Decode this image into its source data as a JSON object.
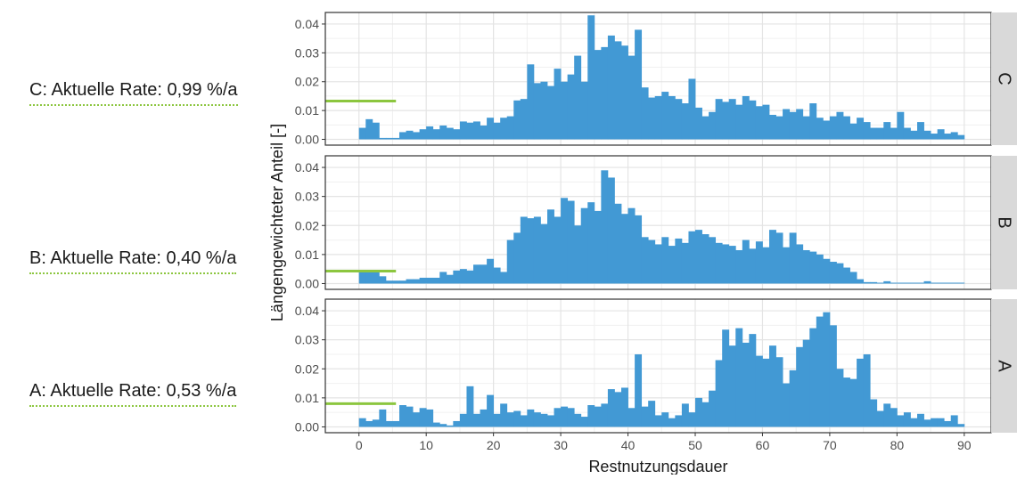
{
  "side_labels": [
    {
      "panel": "C",
      "prefix": "C:",
      "word1": "Aktuelle",
      "word2": "Rate:",
      "value": "0,99 %/a"
    },
    {
      "panel": "B",
      "prefix": "B:",
      "word1": "Aktuelle",
      "word2": "Rate:",
      "value": "0,40 %/a"
    },
    {
      "panel": "A",
      "prefix": "A:",
      "word1": "Aktuelle",
      "word2": "Rate:",
      "value": "0,53 %/a"
    }
  ],
  "chart_data": {
    "type": "bar",
    "xlabel": "Restnutzungsdauer",
    "ylabel": "Längengewichteter Anteil [-]",
    "xlim": [
      -5,
      94
    ],
    "ylim": [
      -0.002,
      0.044
    ],
    "x_ticks": [
      0,
      10,
      20,
      30,
      40,
      50,
      60,
      70,
      80,
      90
    ],
    "y_ticks": [
      0.0,
      0.01,
      0.02,
      0.03,
      0.04
    ],
    "y_tick_labels": [
      "0.00",
      "0.01",
      "0.02",
      "0.03",
      "0.04"
    ],
    "bar_color": "#4299d4",
    "marker_color": "#8cc63f",
    "grid": true,
    "facet_strip_color": "#d9d9d9",
    "panels": [
      {
        "name": "C",
        "marker_value": 0.0133,
        "marker_range": [
          -5,
          5.5
        ],
        "values": [
          0.004,
          0.007,
          0.0058,
          0.0005,
          0.0005,
          0.0005,
          0.0025,
          0.003,
          0.0025,
          0.0035,
          0.0045,
          0.0035,
          0.0048,
          0.004,
          0.0035,
          0.0062,
          0.0058,
          0.0062,
          0.0048,
          0.0075,
          0.0058,
          0.0075,
          0.008,
          0.0135,
          0.014,
          0.026,
          0.0195,
          0.02,
          0.0185,
          0.0245,
          0.02,
          0.0225,
          0.029,
          0.02,
          0.043,
          0.031,
          0.032,
          0.036,
          0.034,
          0.0325,
          0.029,
          0.038,
          0.018,
          0.0145,
          0.015,
          0.0165,
          0.015,
          0.014,
          0.0125,
          0.021,
          0.011,
          0.008,
          0.0095,
          0.014,
          0.013,
          0.014,
          0.012,
          0.015,
          0.0135,
          0.0115,
          0.012,
          0.0085,
          0.008,
          0.0105,
          0.0095,
          0.0105,
          0.008,
          0.0125,
          0.0075,
          0.0065,
          0.008,
          0.0095,
          0.008,
          0.0055,
          0.0075,
          0.006,
          0.004,
          0.004,
          0.006,
          0.004,
          0.0095,
          0.004,
          0.003,
          0.006,
          0.003,
          0.002,
          0.0035,
          0.002,
          0.0025,
          0.0015
        ]
      },
      {
        "name": "B",
        "marker_value": 0.0043,
        "marker_range": [
          -5,
          5.5
        ],
        "values": [
          0.004,
          0.004,
          0.0045,
          0.0025,
          0.001,
          0.001,
          0.001,
          0.0015,
          0.0015,
          0.002,
          0.002,
          0.002,
          0.004,
          0.003,
          0.0045,
          0.005,
          0.0045,
          0.0065,
          0.0065,
          0.0085,
          0.0055,
          0.004,
          0.015,
          0.0175,
          0.023,
          0.0225,
          0.023,
          0.0205,
          0.0255,
          0.023,
          0.0295,
          0.0285,
          0.02,
          0.026,
          0.028,
          0.025,
          0.039,
          0.0365,
          0.0275,
          0.024,
          0.026,
          0.0235,
          0.016,
          0.015,
          0.0135,
          0.016,
          0.013,
          0.0155,
          0.014,
          0.018,
          0.0185,
          0.017,
          0.016,
          0.014,
          0.0135,
          0.013,
          0.0115,
          0.015,
          0.012,
          0.0145,
          0.0125,
          0.0185,
          0.0175,
          0.0125,
          0.0175,
          0.0135,
          0.0115,
          0.011,
          0.01,
          0.0085,
          0.0075,
          0.007,
          0.0055,
          0.004,
          0.0015,
          0.0005,
          0.0005,
          0.0003,
          0.0008,
          0.0003,
          0.0003,
          0.0003,
          0.0003,
          0.0003,
          0.0008,
          0.0003,
          0.0003,
          0.0003,
          0.0003,
          0.0003
        ]
      },
      {
        "name": "A",
        "marker_value": 0.008,
        "marker_range": [
          -5,
          5.5
        ],
        "values": [
          0.003,
          0.002,
          0.0025,
          0.006,
          0.002,
          0.002,
          0.0075,
          0.007,
          0.005,
          0.0065,
          0.006,
          0.0015,
          0.001,
          0.0005,
          0.002,
          0.0045,
          0.014,
          0.0045,
          0.006,
          0.011,
          0.0045,
          0.008,
          0.005,
          0.0055,
          0.004,
          0.006,
          0.005,
          0.0045,
          0.004,
          0.0065,
          0.007,
          0.0065,
          0.0045,
          0.0035,
          0.0075,
          0.007,
          0.008,
          0.013,
          0.012,
          0.0135,
          0.0065,
          0.025,
          0.007,
          0.009,
          0.004,
          0.005,
          0.003,
          0.004,
          0.008,
          0.005,
          0.01,
          0.0085,
          0.0125,
          0.023,
          0.0335,
          0.028,
          0.034,
          0.029,
          0.032,
          0.0245,
          0.0235,
          0.028,
          0.024,
          0.015,
          0.0195,
          0.0275,
          0.03,
          0.034,
          0.038,
          0.0395,
          0.035,
          0.02,
          0.017,
          0.0165,
          0.0235,
          0.025,
          0.0095,
          0.0055,
          0.008,
          0.0065,
          0.004,
          0.005,
          0.003,
          0.0045,
          0.0025,
          0.003,
          0.003,
          0.002,
          0.004,
          0.001
        ]
      }
    ]
  }
}
